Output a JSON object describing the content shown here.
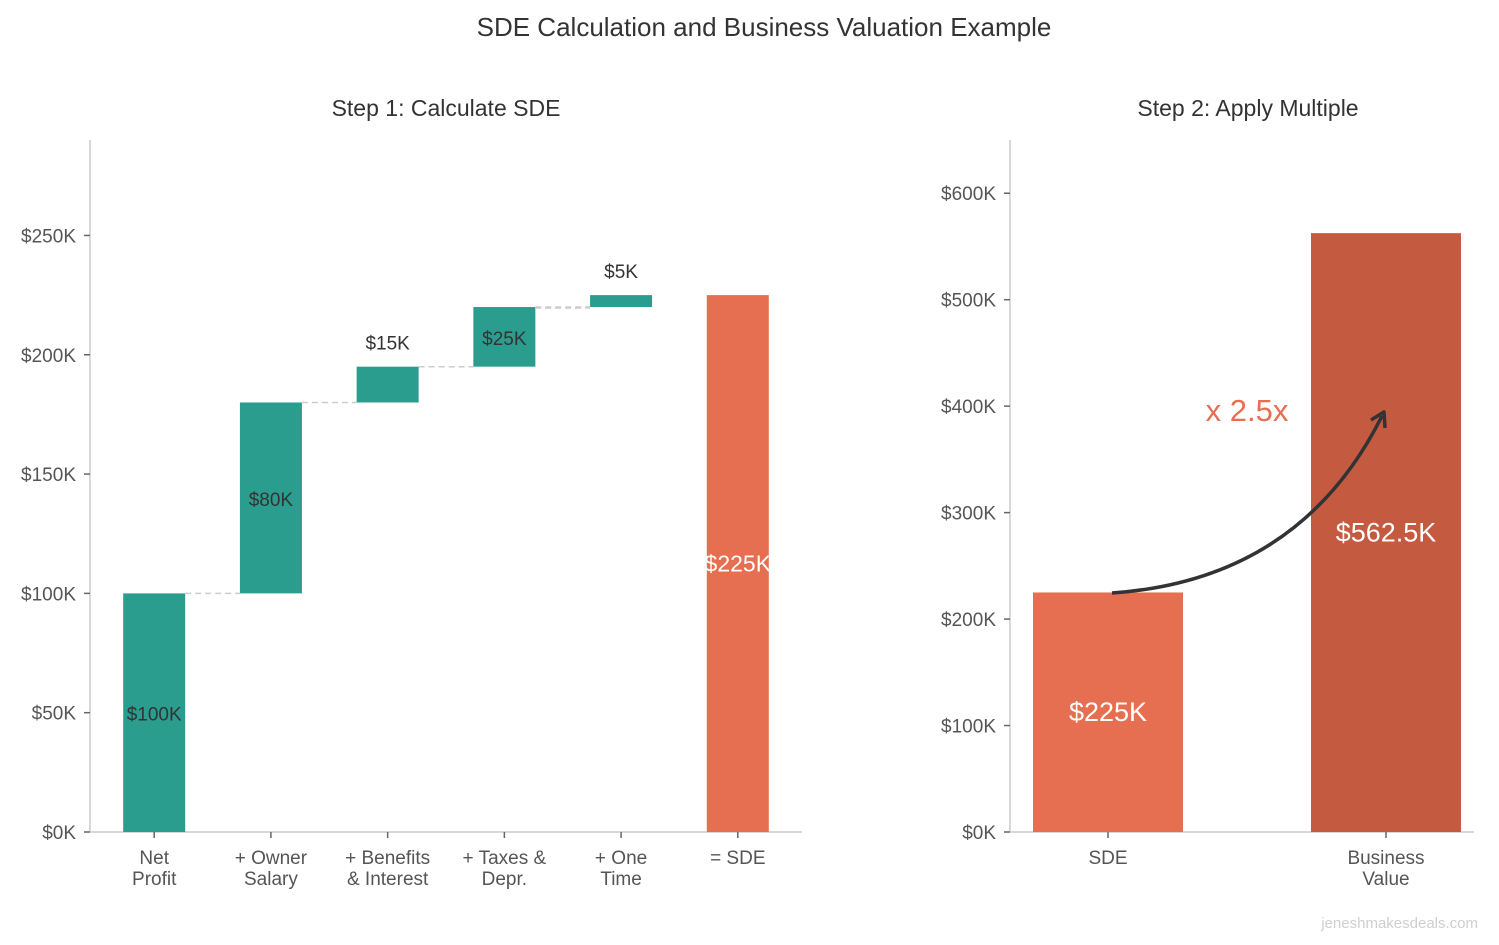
{
  "title": "SDE Calculation and Business Valuation Example",
  "watermark": "jeneshmakesdeals.com",
  "colors": {
    "increase": "#2a9d8f",
    "sde": "#e76f51",
    "business_value": "#c45a3f",
    "connector": "#cccccc",
    "multiplier_text": "#e76f51",
    "arrow": "#333333"
  },
  "chart_data": [
    {
      "type": "waterfall",
      "title": "Step 1: Calculate SDE",
      "categories": [
        "Net\nProfit",
        "+ Owner\nSalary",
        "+ Benefits\n& Interest",
        "+ Taxes &\nDepr.",
        "+ One\nTime",
        "= SDE"
      ],
      "bars": [
        {
          "start": 0,
          "end": 100,
          "label": "$100K",
          "kind": "increase"
        },
        {
          "start": 100,
          "end": 180,
          "label": "$80K",
          "kind": "increase"
        },
        {
          "start": 180,
          "end": 195,
          "label": "$15K",
          "kind": "increase"
        },
        {
          "start": 195,
          "end": 220,
          "label": "$25K",
          "kind": "increase"
        },
        {
          "start": 220,
          "end": 225,
          "label": "$5K",
          "kind": "increase"
        },
        {
          "start": 0,
          "end": 225,
          "label": "$225K",
          "kind": "sde"
        }
      ],
      "unit": "$K",
      "yticks": [
        0,
        50,
        100,
        150,
        200,
        250
      ],
      "ytick_labels": [
        "$0K",
        "$50K",
        "$100K",
        "$150K",
        "$200K",
        "$250K"
      ],
      "ylim": [
        0,
        290
      ],
      "grid": false
    },
    {
      "type": "bar",
      "title": "Step 2: Apply Multiple",
      "categories": [
        "SDE",
        "Business\nValue"
      ],
      "values": [
        225,
        562.5
      ],
      "labels": [
        "$225K",
        "$562.5K"
      ],
      "unit": "$K",
      "yticks": [
        0,
        100,
        200,
        300,
        400,
        500,
        600
      ],
      "ytick_labels": [
        "$0K",
        "$100K",
        "$200K",
        "$300K",
        "$400K",
        "$500K",
        "$600K"
      ],
      "ylim": [
        0,
        650
      ],
      "annotation": "x 2.5x",
      "grid": false
    }
  ]
}
